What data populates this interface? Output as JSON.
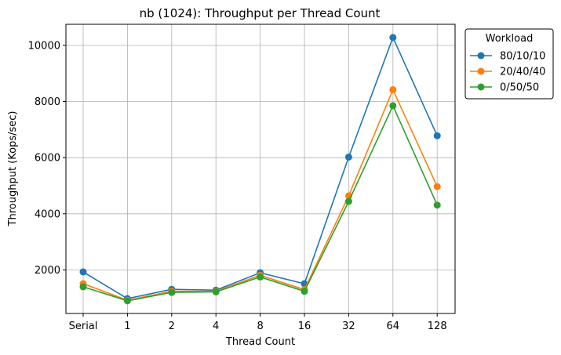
{
  "chart_data": {
    "type": "line",
    "title": "nb (1024): Throughput per Thread Count",
    "xlabel": "Thread Count",
    "ylabel": "Throughput (Kops/sec)",
    "categories": [
      "Serial",
      "1",
      "2",
      "4",
      "8",
      "16",
      "32",
      "64",
      "128"
    ],
    "ylim": [
      450,
      10750
    ],
    "yticks": [
      2000,
      4000,
      6000,
      8000,
      10000
    ],
    "grid": true,
    "legend": {
      "title": "Workload",
      "placement": "outside-top-right"
    },
    "series": [
      {
        "name": "80/10/10",
        "color": "#1f77b4",
        "values": [
          1930,
          980,
          1310,
          1280,
          1900,
          1510,
          6020,
          10280,
          6780
        ]
      },
      {
        "name": "20/40/40",
        "color": "#ff7f0e",
        "values": [
          1510,
          920,
          1240,
          1240,
          1810,
          1300,
          4640,
          8420,
          4970
        ]
      },
      {
        "name": "0/50/50",
        "color": "#2ca02c",
        "values": [
          1400,
          900,
          1200,
          1220,
          1750,
          1240,
          4440,
          7850,
          4310
        ]
      }
    ]
  }
}
